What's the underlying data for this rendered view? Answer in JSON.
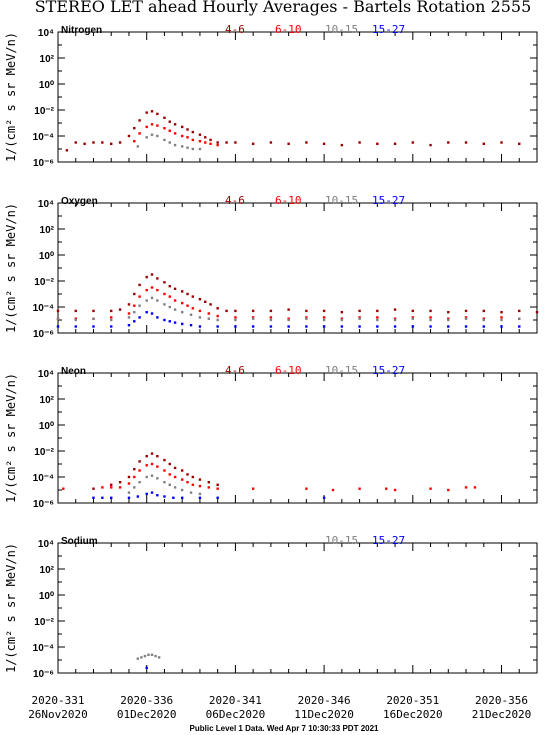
{
  "title": "STEREO LET ahead Hourly Averages - Bartels Rotation 2555",
  "ylabel": "1/(cm² s sr MeV/n)",
  "footer": "Public Level 1 Data. Wed Apr  7 10:30:33 PDT 2021",
  "x_ticks": [
    {
      "doy": "2020-331",
      "date": "26Nov2020",
      "x": 331
    },
    {
      "doy": "2020-336",
      "date": "01Dec2020",
      "x": 336
    },
    {
      "doy": "2020-341",
      "date": "06Dec2020",
      "x": 341
    },
    {
      "doy": "2020-346",
      "date": "11Dec2020",
      "x": 346
    },
    {
      "doy": "2020-351",
      "date": "16Dec2020",
      "x": 351
    },
    {
      "doy": "2020-356",
      "date": "21Dec2020",
      "x": 356
    }
  ],
  "y_tick_labels": [
    "10⁻⁶",
    "10⁻⁴",
    "10⁻²",
    "10⁰",
    "10²",
    "10⁴"
  ],
  "colors": {
    "4-6": "#990000",
    "6-10": "#ff0000",
    "10-15": "#808080",
    "15-27": "#0000ff"
  },
  "chart_data": [
    {
      "type": "scatter",
      "element": "Nitrogen",
      "xlim": [
        331,
        358
      ],
      "ylim": [
        -6,
        4
      ],
      "yscale": "log",
      "legend": [
        "4-6",
        "6-10",
        "10-15",
        "15-27"
      ],
      "series": [
        {
          "name": "4-6",
          "color": "#990000",
          "x": [
            331.5,
            332,
            332.5,
            333,
            333.5,
            334,
            334.5,
            335,
            335.3,
            335.6,
            336,
            336.3,
            336.6,
            337,
            337.3,
            337.6,
            338,
            338.3,
            338.6,
            339,
            339.3,
            339.6,
            340,
            340.5,
            341,
            342,
            343,
            344,
            345,
            346,
            347,
            348,
            349,
            350,
            351,
            352,
            353,
            354,
            355,
            356,
            357
          ],
          "y": [
            -5.1,
            -4.5,
            -4.6,
            -4.5,
            -4.5,
            -4.6,
            -4.5,
            -4.0,
            -3.4,
            -2.8,
            -2.2,
            -2.1,
            -2.3,
            -2.6,
            -2.9,
            -3.1,
            -3.3,
            -3.5,
            -3.7,
            -3.9,
            -4.1,
            -4.3,
            -4.5,
            -4.5,
            -4.5,
            -4.6,
            -4.5,
            -4.6,
            -4.5,
            -4.6,
            -4.7,
            -4.5,
            -4.6,
            -4.6,
            -4.5,
            -4.7,
            -4.5,
            -4.5,
            -4.6,
            -4.5,
            -4.6
          ]
        },
        {
          "name": "6-10",
          "color": "#ff0000",
          "x": [
            335.3,
            335.6,
            336,
            336.3,
            336.6,
            337,
            337.3,
            337.6,
            338,
            338.3,
            338.6,
            339,
            339.3,
            339.6,
            340
          ],
          "y": [
            -4.4,
            -3.8,
            -3.3,
            -3.1,
            -3.2,
            -3.4,
            -3.6,
            -3.8,
            -4.0,
            -4.1,
            -4.3,
            -4.4,
            -4.5,
            -4.6,
            -4.7
          ]
        },
        {
          "name": "10-15",
          "color": "#808080",
          "x": [
            335.5,
            336,
            336.3,
            336.6,
            337,
            337.3,
            337.6,
            338,
            338.3,
            338.6,
            339
          ],
          "y": [
            -4.8,
            -4.1,
            -3.9,
            -4.0,
            -4.3,
            -4.5,
            -4.7,
            -4.8,
            -4.9,
            -5.0,
            -5.0
          ]
        },
        {
          "name": "15-27",
          "color": "#0000ff",
          "x": [],
          "y": []
        }
      ]
    },
    {
      "type": "scatter",
      "element": "Oxygen",
      "xlim": [
        331,
        358
      ],
      "ylim": [
        -6,
        4
      ],
      "yscale": "log",
      "legend": [
        "4-6",
        "6-10",
        "10-15",
        "15-27"
      ],
      "series": [
        {
          "name": "4-6",
          "color": "#990000",
          "x": [
            331,
            332,
            333,
            334,
            334.5,
            335,
            335.3,
            335.6,
            336,
            336.3,
            336.6,
            337,
            337.3,
            337.6,
            338,
            338.3,
            338.6,
            339,
            339.3,
            339.6,
            340,
            340.5,
            341,
            342,
            343,
            344,
            345,
            346,
            347,
            348,
            349,
            350,
            351,
            352,
            353,
            354,
            355,
            356,
            357,
            358
          ],
          "y": [
            -4.3,
            -4.3,
            -4.3,
            -4.3,
            -4.2,
            -3.8,
            -3.0,
            -2.3,
            -1.7,
            -1.5,
            -1.8,
            -2.1,
            -2.4,
            -2.6,
            -2.8,
            -3.0,
            -3.2,
            -3.4,
            -3.6,
            -3.8,
            -4.1,
            -4.3,
            -4.3,
            -4.3,
            -4.3,
            -4.2,
            -4.3,
            -4.3,
            -4.4,
            -4.3,
            -4.3,
            -4.2,
            -4.3,
            -4.3,
            -4.4,
            -4.3,
            -4.3,
            -4.4,
            -4.3,
            -4.4
          ]
        },
        {
          "name": "6-10",
          "color": "#ff0000",
          "x": [
            331,
            332,
            333,
            334,
            335,
            335.3,
            335.6,
            336,
            336.3,
            336.6,
            337,
            337.3,
            337.6,
            338,
            338.3,
            338.6,
            339,
            339.5,
            340,
            341,
            342,
            343,
            344,
            345,
            346,
            347,
            348,
            349,
            350,
            351,
            352,
            353,
            354,
            355,
            356,
            357
          ],
          "y": [
            -4.9,
            -4.9,
            -4.9,
            -4.8,
            -4.5,
            -3.9,
            -3.2,
            -2.7,
            -2.5,
            -2.7,
            -3.0,
            -3.2,
            -3.5,
            -3.7,
            -3.9,
            -4.1,
            -4.3,
            -4.5,
            -4.7,
            -4.8,
            -4.8,
            -4.8,
            -4.9,
            -4.8,
            -4.8,
            -4.9,
            -4.8,
            -4.8,
            -4.9,
            -4.8,
            -4.8,
            -4.9,
            -4.8,
            -4.9,
            -4.8,
            -4.9
          ]
        },
        {
          "name": "10-15",
          "color": "#808080",
          "x": [
            331,
            332,
            333,
            334,
            335,
            335.3,
            335.6,
            336,
            336.3,
            336.6,
            337,
            337.3,
            337.6,
            338,
            338.5,
            339,
            339.5,
            340,
            341,
            342,
            343,
            344,
            345,
            346,
            347,
            348,
            349,
            350,
            351,
            352,
            353,
            354,
            355,
            356,
            357
          ],
          "y": [
            -4.9,
            -5.0,
            -4.9,
            -5.0,
            -4.8,
            -4.4,
            -3.9,
            -3.5,
            -3.3,
            -3.5,
            -3.8,
            -4.0,
            -4.2,
            -4.4,
            -4.6,
            -4.8,
            -4.9,
            -5.0,
            -5.0,
            -4.9,
            -5.0,
            -5.0,
            -4.9,
            -5.0,
            -5.0,
            -4.9,
            -5.0,
            -5.0,
            -4.9,
            -5.0,
            -5.0,
            -4.9,
            -5.0,
            -5.0,
            -4.9
          ]
        },
        {
          "name": "15-27",
          "color": "#0000ff",
          "x": [
            331,
            332,
            333,
            334,
            335,
            335.3,
            335.6,
            336,
            336.3,
            336.6,
            337,
            337.3,
            337.6,
            338,
            338.5,
            339,
            340,
            341,
            342,
            343,
            344,
            345,
            346,
            347,
            348,
            349,
            350,
            351,
            352,
            353,
            354,
            355,
            356,
            357
          ],
          "y": [
            -5.5,
            -5.5,
            -5.5,
            -5.5,
            -5.4,
            -5.1,
            -4.8,
            -4.4,
            -4.5,
            -4.8,
            -5.0,
            -5.1,
            -5.2,
            -5.3,
            -5.4,
            -5.5,
            -5.5,
            -5.5,
            -5.5,
            -5.5,
            -5.5,
            -5.5,
            -5.5,
            -5.5,
            -5.5,
            -5.5,
            -5.5,
            -5.5,
            -5.5,
            -5.5,
            -5.5,
            -5.5,
            -5.5,
            -5.5
          ]
        }
      ]
    },
    {
      "type": "scatter",
      "element": "Neon",
      "xlim": [
        331,
        358
      ],
      "ylim": [
        -6,
        4
      ],
      "yscale": "log",
      "legend": [
        "4-6",
        "6-10",
        "10-15",
        "15-27"
      ],
      "series": [
        {
          "name": "4-6",
          "color": "#990000",
          "x": [
            333,
            334,
            334.5,
            335,
            335.3,
            335.6,
            336,
            336.3,
            336.6,
            337,
            337.3,
            337.6,
            338,
            338.3,
            338.6,
            339,
            339.5,
            340
          ],
          "y": [
            -4.9,
            -4.6,
            -4.4,
            -4.0,
            -3.4,
            -2.8,
            -2.4,
            -2.2,
            -2.4,
            -2.7,
            -3.0,
            -3.3,
            -3.5,
            -3.8,
            -4.0,
            -4.2,
            -4.4,
            -4.6
          ]
        },
        {
          "name": "6-10",
          "color": "#ff0000",
          "x": [
            331.3,
            333.5,
            334,
            334.5,
            335,
            335.3,
            335.6,
            336,
            336.3,
            336.6,
            337,
            337.3,
            337.6,
            338,
            338.3,
            338.6,
            339,
            339.5,
            340,
            342,
            345,
            346.5,
            348,
            349.5,
            350,
            352,
            353,
            354,
            354.5
          ],
          "y": [
            -4.9,
            -4.8,
            -4.8,
            -4.8,
            -4.5,
            -4.0,
            -3.5,
            -3.1,
            -3.0,
            -3.2,
            -3.5,
            -3.8,
            -4.0,
            -4.2,
            -4.4,
            -4.6,
            -4.7,
            -4.8,
            -4.9,
            -4.9,
            -4.9,
            -5.0,
            -4.9,
            -4.9,
            -5.0,
            -4.9,
            -5.0,
            -4.8,
            -4.8
          ]
        },
        {
          "name": "10-15",
          "color": "#808080",
          "x": [
            335,
            335.3,
            335.6,
            336,
            336.3,
            336.6,
            337,
            337.3,
            337.6,
            338,
            338.5,
            339
          ],
          "y": [
            -5.2,
            -4.8,
            -4.4,
            -4.0,
            -3.9,
            -4.1,
            -4.4,
            -4.6,
            -4.8,
            -5.0,
            -5.2,
            -5.3
          ]
        },
        {
          "name": "15-27",
          "color": "#0000ff",
          "x": [
            333,
            333.5,
            334,
            335,
            335.5,
            336,
            336.3,
            336.6,
            337,
            337.5,
            338,
            339,
            340,
            346
          ],
          "y": [
            -5.6,
            -5.6,
            -5.6,
            -5.6,
            -5.5,
            -5.3,
            -5.2,
            -5.4,
            -5.5,
            -5.6,
            -5.6,
            -5.6,
            -5.6,
            -5.6
          ]
        }
      ]
    },
    {
      "type": "scatter",
      "element": "Sodium",
      "xlim": [
        331,
        358
      ],
      "ylim": [
        -6,
        4
      ],
      "yscale": "log",
      "legend": [
        "10-15",
        "15-27"
      ],
      "series": [
        {
          "name": "10-15",
          "color": "#808080",
          "x": [
            335.5,
            335.7,
            335.9,
            336.1,
            336.3,
            336.5,
            336.7
          ],
          "y": [
            -4.9,
            -4.8,
            -4.7,
            -4.6,
            -4.6,
            -4.7,
            -4.8
          ]
        },
        {
          "name": "15-27",
          "color": "#0000ff",
          "x": [
            336.0
          ],
          "y": [
            -5.6
          ]
        }
      ]
    }
  ]
}
